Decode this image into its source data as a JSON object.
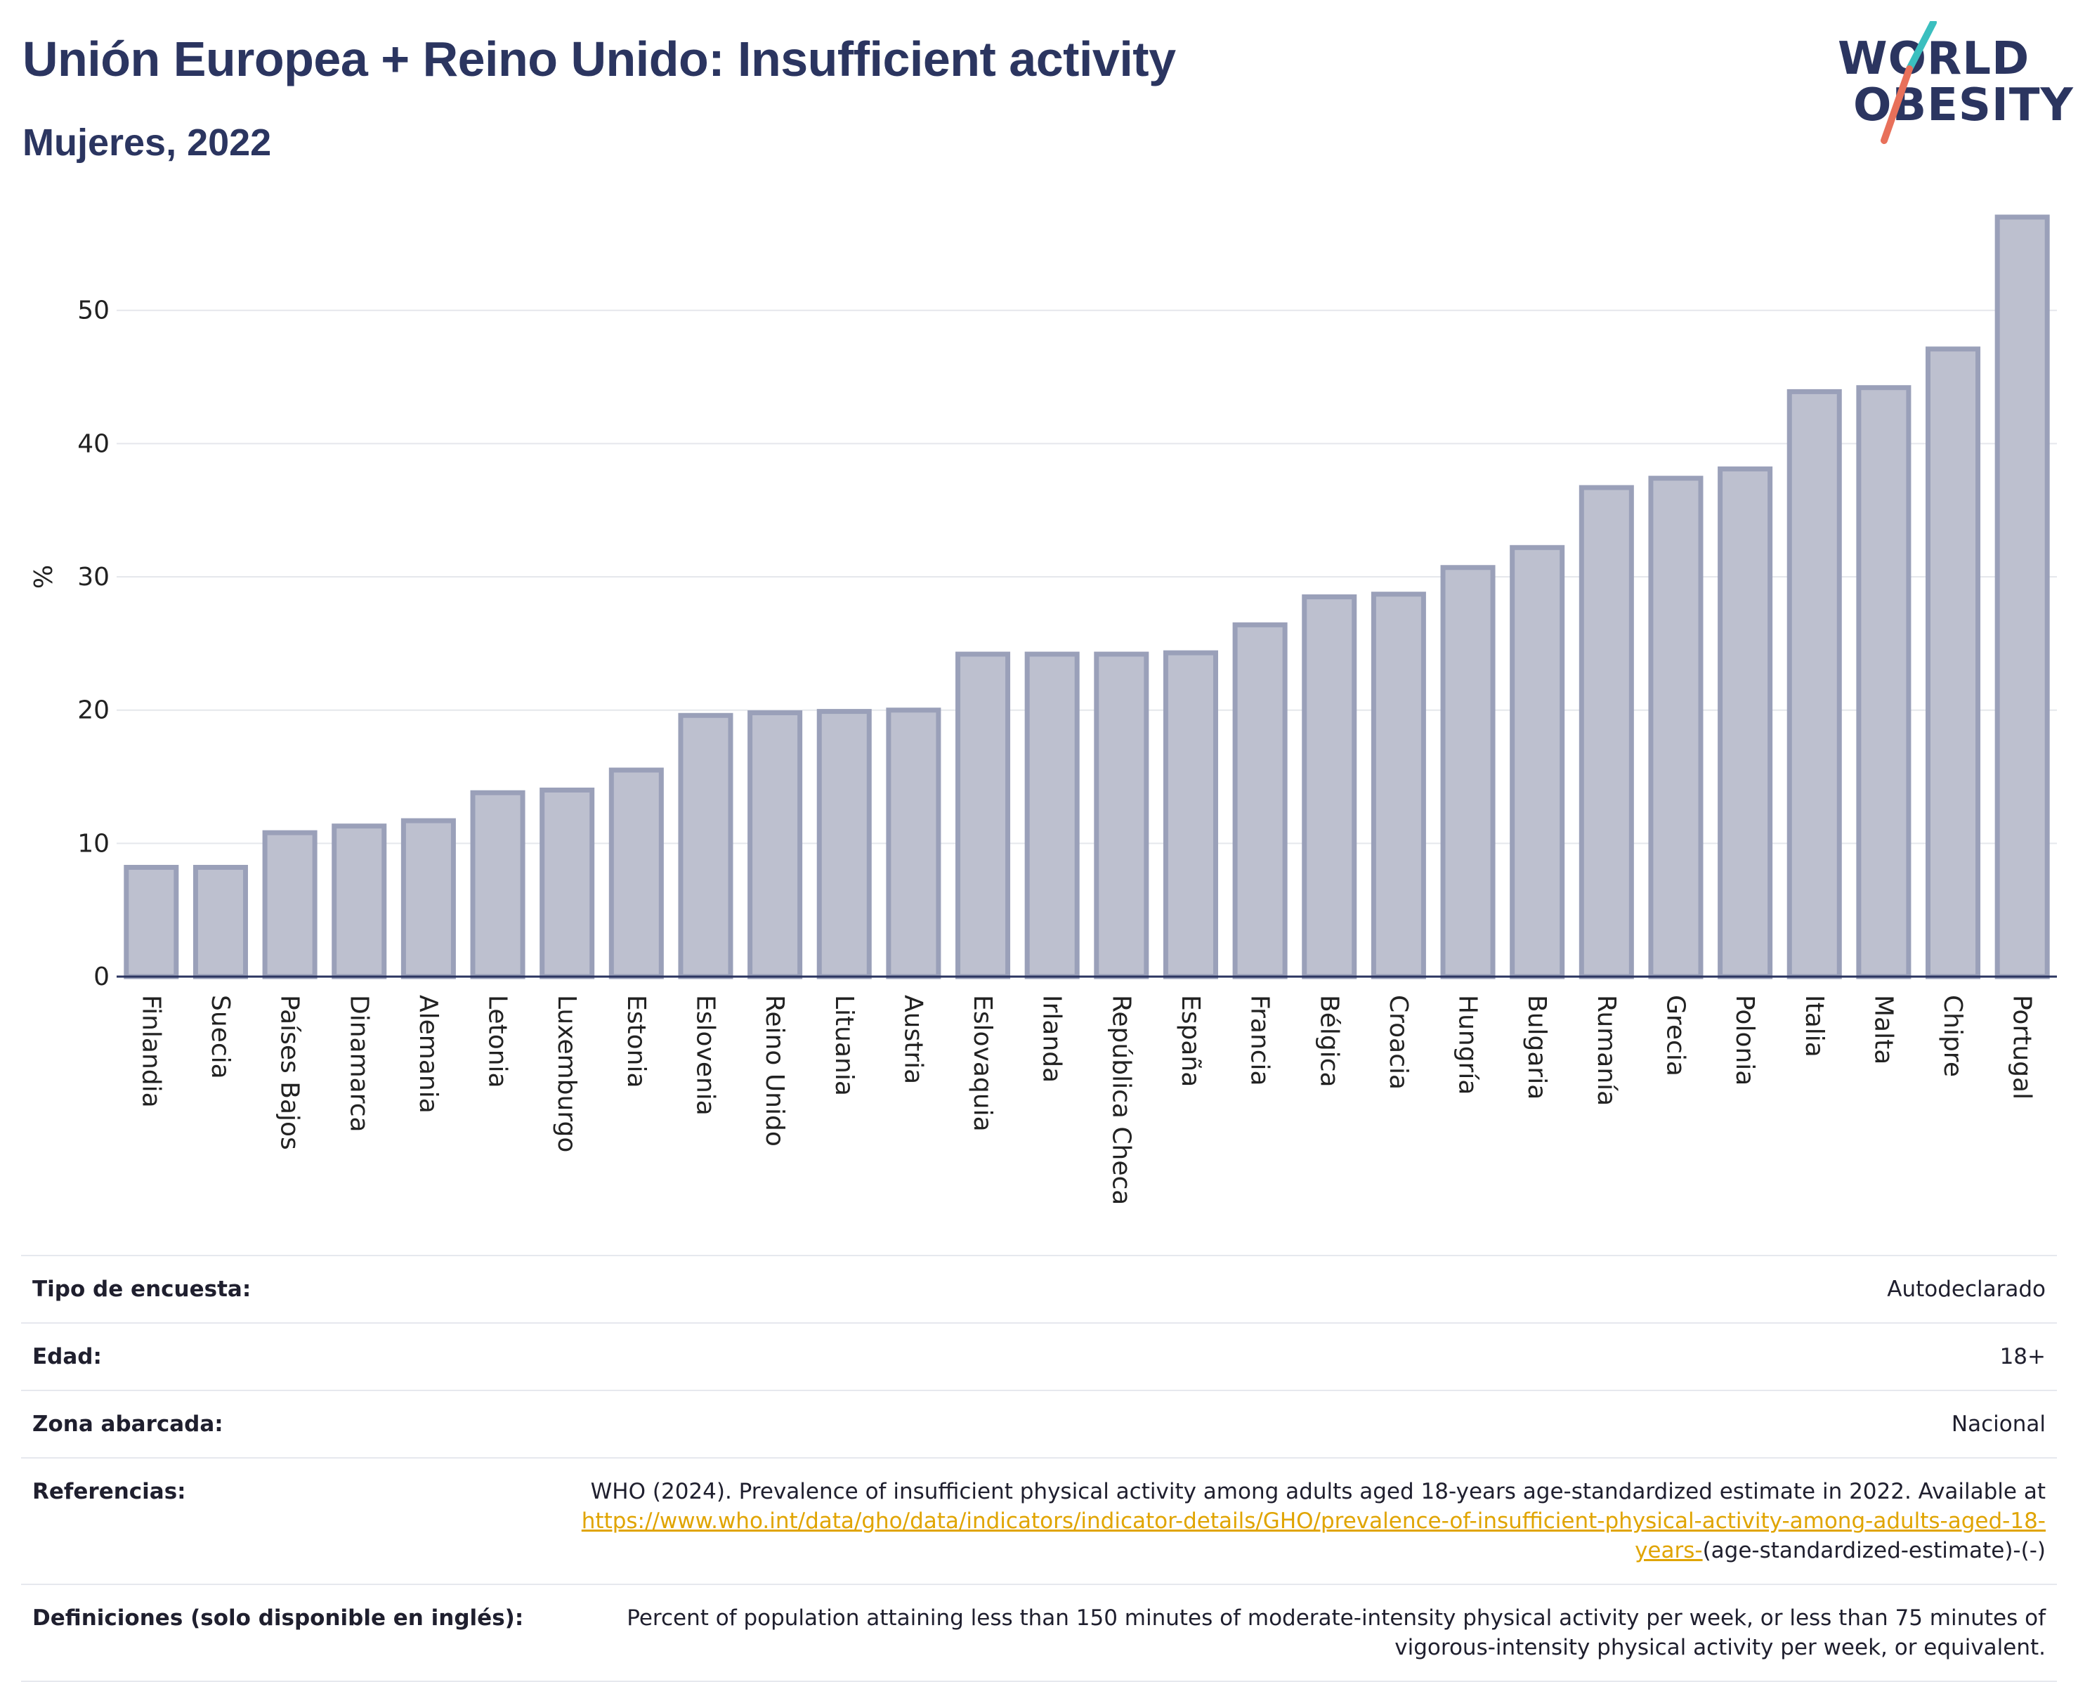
{
  "header": {
    "title": "Unión Europea + Reino Unido: Insufficient activity",
    "subtitle": "Mujeres, 2022"
  },
  "logo": {
    "line1": "WORLD",
    "line2": "OBESITY",
    "colors": {
      "text": "#2b3560",
      "slash_top": "#3bbfbf",
      "slash_bottom": "#e8705a"
    }
  },
  "chart_data": {
    "type": "bar",
    "title": "Unión Europea + Reino Unido: Insufficient activity",
    "subtitle": "Mujeres, 2022",
    "ylabel": "%",
    "xlabel": "",
    "ylim": [
      0,
      58
    ],
    "yticks": [
      0,
      10,
      20,
      30,
      40,
      50
    ],
    "grid": true,
    "bar_color": "#bdc0cf",
    "bar_edge_color": "#9aa0b9",
    "categories": [
      "Finlandia",
      "Suecia",
      "Países Bajos",
      "Dinamarca",
      "Alemania",
      "Letonia",
      "Luxemburgo",
      "Estonia",
      "Eslovenia",
      "Reino Unido",
      "Lituania",
      "Austria",
      "Eslovaquia",
      "Irlanda",
      "República Checa",
      "España",
      "Francia",
      "Bélgica",
      "Croacia",
      "Hungría",
      "Bulgaria",
      "Rumanía",
      "Grecia",
      "Polonia",
      "Italia",
      "Malta",
      "Chipre",
      "Portugal"
    ],
    "values": [
      8.2,
      8.2,
      10.8,
      11.3,
      11.7,
      13.8,
      14.0,
      15.5,
      19.6,
      19.8,
      19.9,
      20.0,
      24.2,
      24.2,
      24.2,
      24.3,
      26.4,
      28.5,
      28.7,
      30.7,
      32.2,
      36.7,
      37.4,
      38.1,
      43.9,
      44.2,
      47.1,
      57.0
    ]
  },
  "meta": [
    {
      "label": "Tipo de encuesta:",
      "value": "Autodeclarado"
    },
    {
      "label": "Edad:",
      "value": "18+"
    },
    {
      "label": "Zona abarcada:",
      "value": "Nacional"
    },
    {
      "label": "Referencias:",
      "value_before": "WHO (2024). Prevalence of insufficient physical activity among adults aged 18-years age-standardized estimate in 2022. Available at",
      "link": "https://www.who.int/data/gho/data/indicators/indicator-details/GHO/prevalence-of-insufficient-physical-activity-among-adults-aged-18-years-",
      "value_after": "(age-standardized-estimate)-(-)"
    },
    {
      "label": "Definiciones (solo disponible en inglés):",
      "value": "Percent of population attaining less than 150 minutes of moderate-intensity physical activity per week, or less than 75 minutes of vigorous-intensity physical activity per week, or equivalent."
    }
  ]
}
